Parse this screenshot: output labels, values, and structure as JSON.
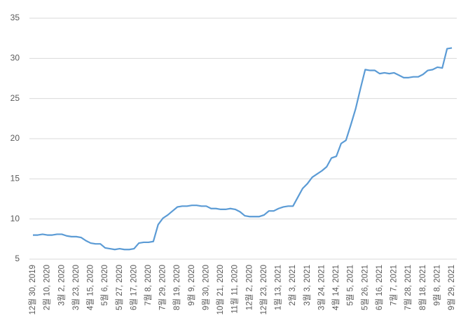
{
  "chart_data": {
    "type": "line",
    "categories": [
      "12월 30, 2019",
      null,
      null,
      "2월 10, 2020",
      null,
      null,
      "3월 2, 2020",
      null,
      null,
      "3월 23, 2020",
      null,
      null,
      "4월 15, 2020",
      null,
      null,
      "5월 6, 2020",
      null,
      null,
      "5월 27, 2020",
      null,
      null,
      "6월 17, 2020",
      null,
      null,
      "7월 8, 2020",
      null,
      null,
      "7월 29, 2020",
      null,
      null,
      "8월 19, 2020",
      null,
      null,
      "9월 9, 2020",
      null,
      null,
      "9월 30, 2020",
      null,
      null,
      "10월 21, 2020",
      null,
      null,
      "11월 11, 2020",
      null,
      null,
      "12월 2, 2020",
      null,
      null,
      "12월 23, 2020",
      null,
      null,
      "1월 13, 2021",
      null,
      null,
      "2월 3, 2021",
      null,
      null,
      "3월 3, 2021",
      null,
      null,
      "3월 24, 2021",
      null,
      null,
      "4월 14, 2021",
      null,
      null,
      "5월 5, 2021",
      null,
      null,
      "5월 26, 2021",
      null,
      null,
      "6월 16, 2021",
      null,
      null,
      "7월 7, 2021",
      null,
      null,
      "7월 28, 2021",
      null,
      null,
      "8월 18, 2021",
      null,
      null,
      "9월 8, 2021",
      null,
      null,
      "9월 29, 2021"
    ],
    "values": [
      8.0,
      8.0,
      8.1,
      8.0,
      8.0,
      8.1,
      8.1,
      7.9,
      7.8,
      7.8,
      7.7,
      7.3,
      7.0,
      6.9,
      6.9,
      6.4,
      6.3,
      6.2,
      6.3,
      6.2,
      6.2,
      6.3,
      7.0,
      7.1,
      7.1,
      7.2,
      9.3,
      10.1,
      10.5,
      11.0,
      11.5,
      11.6,
      11.6,
      11.7,
      11.7,
      11.6,
      11.6,
      11.3,
      11.3,
      11.2,
      11.2,
      11.3,
      11.2,
      10.9,
      10.4,
      10.3,
      10.3,
      10.3,
      10.5,
      11.0,
      11.0,
      11.3,
      11.5,
      11.6,
      11.6,
      12.7,
      13.8,
      14.4,
      15.2,
      15.6,
      16.0,
      16.5,
      17.6,
      17.8,
      19.4,
      19.8,
      21.7,
      23.7,
      26.2,
      28.6,
      28.5,
      28.5,
      28.1,
      28.2,
      28.1,
      28.2,
      27.9,
      27.6,
      27.6,
      27.7,
      27.7,
      28.0,
      28.5,
      28.6,
      28.9,
      28.8,
      31.2,
      31.3
    ],
    "color": "#5b9bd5",
    "ylim": [
      5,
      35
    ],
    "yticks": [
      5,
      10,
      15,
      20,
      25,
      30,
      35
    ],
    "grid": true
  }
}
